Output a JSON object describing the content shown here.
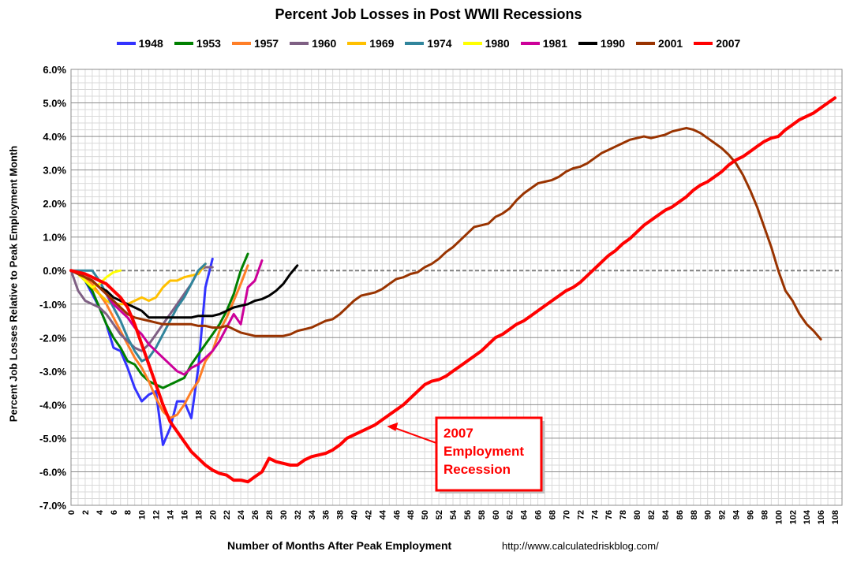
{
  "chart_data": {
    "type": "line",
    "title": "Percent Job Losses in Post WWII Recessions",
    "xlabel": "Number of Months After Peak Employment",
    "ylabel": "Percent Job Losses Relative to Peak Employment Month",
    "source": "http://www.calculatedriskblog.com/",
    "xlim": [
      0,
      109
    ],
    "ylim": [
      -7.0,
      6.0
    ],
    "y_ticks": [
      "-7.0%",
      "-6.0%",
      "-5.0%",
      "-4.0%",
      "-3.0%",
      "-2.0%",
      "-1.0%",
      "0.0%",
      "1.0%",
      "2.0%",
      "3.0%",
      "4.0%",
      "5.0%",
      "6.0%"
    ],
    "x_tick_step": 2,
    "grid": "minor gridlines every month and 0.2%",
    "legend_position": "top",
    "annotation": {
      "lines": [
        "2007",
        "Employment",
        "Recession"
      ],
      "color": "#ff0000",
      "points_to": [
        44,
        -4.6
      ]
    },
    "series": [
      {
        "name": "1948",
        "color": "#3333ff",
        "values": [
          0,
          -0.1,
          -0.3,
          -0.7,
          -1.1,
          -1.6,
          -2.3,
          -2.4,
          -2.9,
          -3.5,
          -3.9,
          -3.7,
          -3.6,
          -5.2,
          -4.7,
          -3.9,
          -3.9,
          -4.4,
          -2.9,
          -0.5,
          0.35
        ]
      },
      {
        "name": "1953",
        "color": "#008000",
        "values": [
          0,
          -0.1,
          -0.3,
          -0.6,
          -1.1,
          -1.6,
          -2.0,
          -2.3,
          -2.7,
          -2.8,
          -3.1,
          -3.3,
          -3.4,
          -3.5,
          -3.4,
          -3.3,
          -3.2,
          -2.8,
          -2.5,
          -2.2,
          -1.9,
          -1.6,
          -1.2,
          -0.7,
          0.0,
          0.5
        ]
      },
      {
        "name": "1957",
        "color": "#ff7f27",
        "values": [
          0,
          -0.1,
          -0.2,
          -0.4,
          -0.7,
          -1.0,
          -1.4,
          -1.8,
          -2.2,
          -2.6,
          -2.9,
          -3.3,
          -3.8,
          -4.2,
          -4.4,
          -4.3,
          -4.0,
          -3.6,
          -3.3,
          -2.7,
          -2.4,
          -1.8,
          -1.4,
          -0.9,
          -0.4,
          0.15
        ]
      },
      {
        "name": "1960",
        "color": "#7f6084",
        "values": [
          0,
          -0.6,
          -0.9,
          -1.0,
          -1.1,
          -1.3,
          -1.6,
          -1.9,
          -2.1,
          -2.3,
          -2.4,
          -2.2,
          -1.9,
          -1.6,
          -1.3,
          -1.0,
          -0.7,
          -0.4,
          0.0,
          0.1,
          0.1
        ]
      },
      {
        "name": "1969",
        "color": "#ffc000",
        "values": [
          0,
          -0.1,
          -0.3,
          -0.5,
          -0.7,
          -0.9,
          -1.0,
          -1.0,
          -1.0,
          -0.9,
          -0.8,
          -0.9,
          -0.8,
          -0.5,
          -0.3,
          -0.3,
          -0.2,
          -0.15,
          -0.1,
          0.2
        ]
      },
      {
        "name": "1974",
        "color": "#31859c",
        "values": [
          0,
          0.0,
          0.0,
          0.0,
          -0.3,
          -0.7,
          -1.1,
          -1.5,
          -2.0,
          -2.4,
          -2.7,
          -2.6,
          -2.3,
          -1.9,
          -1.5,
          -1.1,
          -0.8,
          -0.4,
          0.0,
          0.2
        ]
      },
      {
        "name": "1980",
        "color": "#ffff00",
        "values": [
          0,
          -0.1,
          -0.3,
          -0.5,
          -0.4,
          -0.2,
          -0.05,
          0.0
        ]
      },
      {
        "name": "1981",
        "color": "#cc0099",
        "values": [
          0,
          -0.1,
          -0.2,
          -0.3,
          -0.5,
          -0.7,
          -1.0,
          -1.2,
          -1.4,
          -1.7,
          -1.9,
          -2.2,
          -2.4,
          -2.6,
          -2.8,
          -3.0,
          -3.1,
          -2.9,
          -2.8,
          -2.6,
          -2.4,
          -2.1,
          -1.7,
          -1.3,
          -1.6,
          -0.5,
          -0.3,
          0.3
        ]
      },
      {
        "name": "1990",
        "color": "#000000",
        "values": [
          0,
          -0.1,
          -0.2,
          -0.3,
          -0.5,
          -0.6,
          -0.8,
          -0.9,
          -1.0,
          -1.1,
          -1.2,
          -1.4,
          -1.4,
          -1.4,
          -1.4,
          -1.4,
          -1.4,
          -1.4,
          -1.35,
          -1.35,
          -1.35,
          -1.3,
          -1.2,
          -1.1,
          -1.05,
          -1.0,
          -0.9,
          -0.85,
          -0.75,
          -0.6,
          -0.4,
          -0.1,
          0.15
        ]
      },
      {
        "name": "2001",
        "color": "#993300",
        "values": [
          0,
          -0.1,
          -0.2,
          -0.3,
          -0.5,
          -0.7,
          -0.9,
          -1.1,
          -1.3,
          -1.4,
          -1.45,
          -1.5,
          -1.55,
          -1.6,
          -1.6,
          -1.6,
          -1.6,
          -1.6,
          -1.65,
          -1.65,
          -1.7,
          -1.7,
          -1.65,
          -1.75,
          -1.85,
          -1.9,
          -1.95,
          -1.95,
          -1.95,
          -1.95,
          -1.95,
          -1.9,
          -1.8,
          -1.75,
          -1.7,
          -1.6,
          -1.5,
          -1.45,
          -1.3,
          -1.1,
          -0.9,
          -0.75,
          -0.7,
          -0.65,
          -0.55,
          -0.4,
          -0.25,
          -0.2,
          -0.1,
          -0.05,
          0.1,
          0.2,
          0.35,
          0.55,
          0.7,
          0.9,
          1.1,
          1.3,
          1.35,
          1.4,
          1.6,
          1.7,
          1.85,
          2.1,
          2.3,
          2.45,
          2.6,
          2.65,
          2.7,
          2.8,
          2.95,
          3.05,
          3.1,
          3.2,
          3.35,
          3.5,
          3.6,
          3.7,
          3.8,
          3.9,
          3.95,
          4.0,
          3.95,
          4.0,
          4.05,
          4.15,
          4.2,
          4.25,
          4.2,
          4.1,
          3.95,
          3.8,
          3.65,
          3.45,
          3.2,
          2.85,
          2.4,
          1.9,
          1.3,
          0.7,
          0.0,
          -0.6,
          -0.9,
          -1.3,
          -1.6,
          -1.8,
          -2.05
        ]
      },
      {
        "name": "2007",
        "color": "#ff0000",
        "values": [
          0,
          -0.05,
          -0.1,
          -0.2,
          -0.3,
          -0.4,
          -0.6,
          -0.8,
          -1.1,
          -1.6,
          -2.2,
          -2.8,
          -3.4,
          -4.0,
          -4.5,
          -4.8,
          -5.1,
          -5.4,
          -5.6,
          -5.8,
          -5.95,
          -6.05,
          -6.1,
          -6.25,
          -6.25,
          -6.3,
          -6.15,
          -6.0,
          -5.6,
          -5.7,
          -5.75,
          -5.8,
          -5.8,
          -5.65,
          -5.55,
          -5.5,
          -5.45,
          -5.35,
          -5.2,
          -5.0,
          -4.9,
          -4.8,
          -4.7,
          -4.6,
          -4.45,
          -4.3,
          -4.15,
          -4.0,
          -3.8,
          -3.6,
          -3.4,
          -3.3,
          -3.25,
          -3.15,
          -3.0,
          -2.85,
          -2.7,
          -2.55,
          -2.4,
          -2.2,
          -2.0,
          -1.9,
          -1.75,
          -1.6,
          -1.5,
          -1.35,
          -1.2,
          -1.05,
          -0.9,
          -0.75,
          -0.6,
          -0.5,
          -0.35,
          -0.15,
          0.05,
          0.25,
          0.45,
          0.6,
          0.8,
          0.95,
          1.15,
          1.35,
          1.5,
          1.65,
          1.8,
          1.9,
          2.05,
          2.2,
          2.4,
          2.55,
          2.65,
          2.8,
          2.95,
          3.15,
          3.3,
          3.4,
          3.55,
          3.7,
          3.85,
          3.95,
          4.0,
          4.2,
          4.35,
          4.5,
          4.6,
          4.7,
          4.85,
          5.0,
          5.15
        ]
      }
    ]
  }
}
